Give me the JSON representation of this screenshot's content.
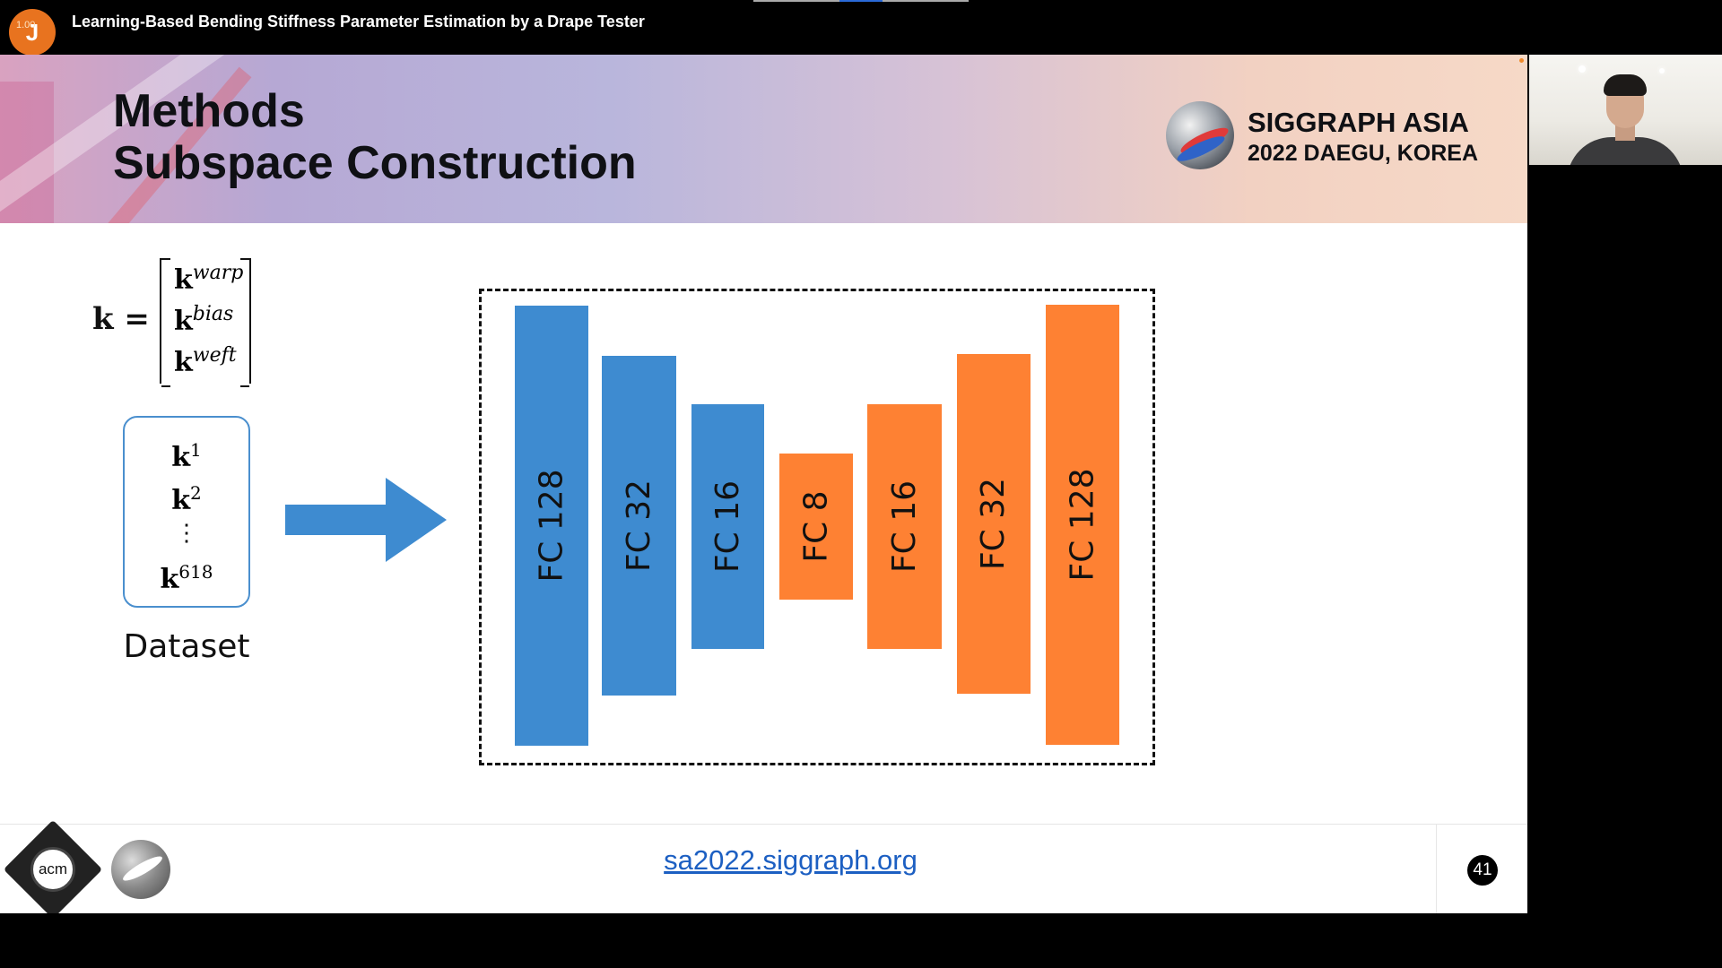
{
  "window": {
    "title": "Learning-Based Bending Stiffness Parameter Estimation by a Drape Tester",
    "avatar_letter": "J",
    "avatar_overlay": "1.00"
  },
  "slide": {
    "title_line1": "Methods",
    "title_line2": "Subspace Construction",
    "conference": {
      "line1": "SIGGRAPH ASIA",
      "line2": "2022 DAEGU, KOREA"
    },
    "equation": {
      "lhs": "k =",
      "rows": [
        {
          "base": "k",
          "sup": "warp"
        },
        {
          "base": "k",
          "sup": "bias"
        },
        {
          "base": "k",
          "sup": "weft"
        }
      ]
    },
    "dataset": {
      "items": [
        {
          "base": "k",
          "sup": "1"
        },
        {
          "base": "k",
          "sup": "2"
        },
        {
          "base": "k",
          "sup": "618"
        }
      ],
      "ellipsis": "⋮",
      "label": "Dataset"
    },
    "network": {
      "layers": [
        {
          "label": "FC 128",
          "color": "#3e8bd0"
        },
        {
          "label": "FC 32",
          "color": "#3e8bd0"
        },
        {
          "label": "FC 16",
          "color": "#3e8bd0"
        },
        {
          "label": "FC 8",
          "color": "#fe8133"
        },
        {
          "label": "FC 16",
          "color": "#fe8133"
        },
        {
          "label": "FC 32",
          "color": "#fe8133"
        },
        {
          "label": "FC 128",
          "color": "#fe8133"
        }
      ],
      "arrow_color": "#3e8bd0"
    },
    "footer": {
      "acm_label": "acm",
      "url": "sa2022.siggraph.org",
      "page_number": "41"
    }
  }
}
